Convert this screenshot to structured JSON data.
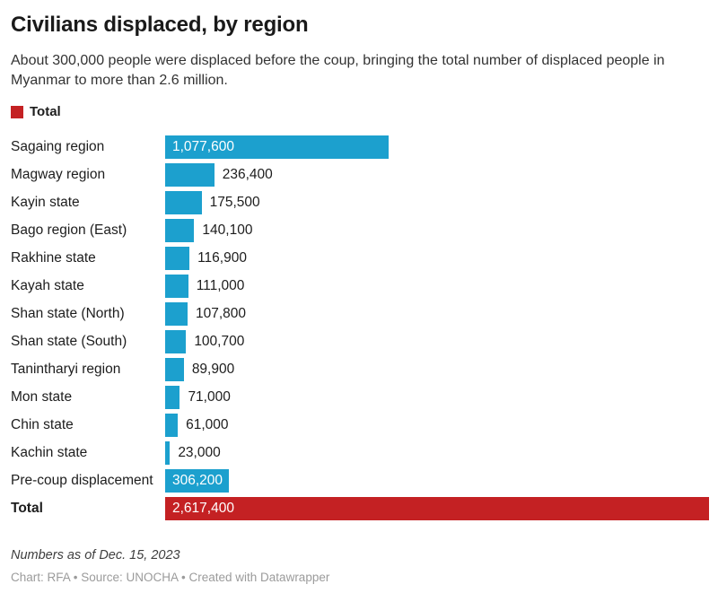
{
  "header": {
    "title": "Civilians displaced, by region",
    "subtitle": "About 300,000 people were displaced before the coup, bringing the total number of displaced people in Myanmar to more than 2.6 million."
  },
  "legend": {
    "label": "Total",
    "color": "#c42123"
  },
  "colors": {
    "bar_blue": "#1ca0ce",
    "bar_red": "#c42123"
  },
  "chart_data": {
    "type": "bar",
    "title": "Civilians displaced, by region",
    "orientation": "horizontal",
    "xlim": [
      0,
      2617400
    ],
    "grid": false,
    "legend_position": "top-left",
    "categories": [
      "Sagaing region",
      "Magway region",
      "Kayin state",
      "Bago region (East)",
      "Rakhine state",
      "Kayah state",
      "Shan state (North)",
      "Shan state (South)",
      "Tanintharyi region",
      "Mon state",
      "Chin state",
      "Kachin state",
      "Pre-coup displacement",
      "Total"
    ],
    "values": [
      1077600,
      236400,
      175500,
      140100,
      116900,
      111000,
      107800,
      100700,
      89900,
      71000,
      61000,
      23000,
      306200,
      2617400
    ],
    "value_labels": [
      "1,077,600",
      "236,400",
      "175,500",
      "140,100",
      "116,900",
      "111,000",
      "107,800",
      "100,700",
      "89,900",
      "71,000",
      "61,000",
      "23,000",
      "306,200",
      "2,617,400"
    ],
    "inside_labels": [
      true,
      false,
      false,
      false,
      false,
      false,
      false,
      false,
      false,
      false,
      false,
      false,
      true,
      true
    ],
    "bold": [
      false,
      false,
      false,
      false,
      false,
      false,
      false,
      false,
      false,
      false,
      false,
      false,
      false,
      true
    ],
    "bar_colors": [
      "#1ca0ce",
      "#1ca0ce",
      "#1ca0ce",
      "#1ca0ce",
      "#1ca0ce",
      "#1ca0ce",
      "#1ca0ce",
      "#1ca0ce",
      "#1ca0ce",
      "#1ca0ce",
      "#1ca0ce",
      "#1ca0ce",
      "#1ca0ce",
      "#c42123"
    ]
  },
  "footer": {
    "notes": "Numbers as of Dec. 15, 2023",
    "credits": "Chart: RFA • Source: UNOCHA • Created with Datawrapper"
  }
}
